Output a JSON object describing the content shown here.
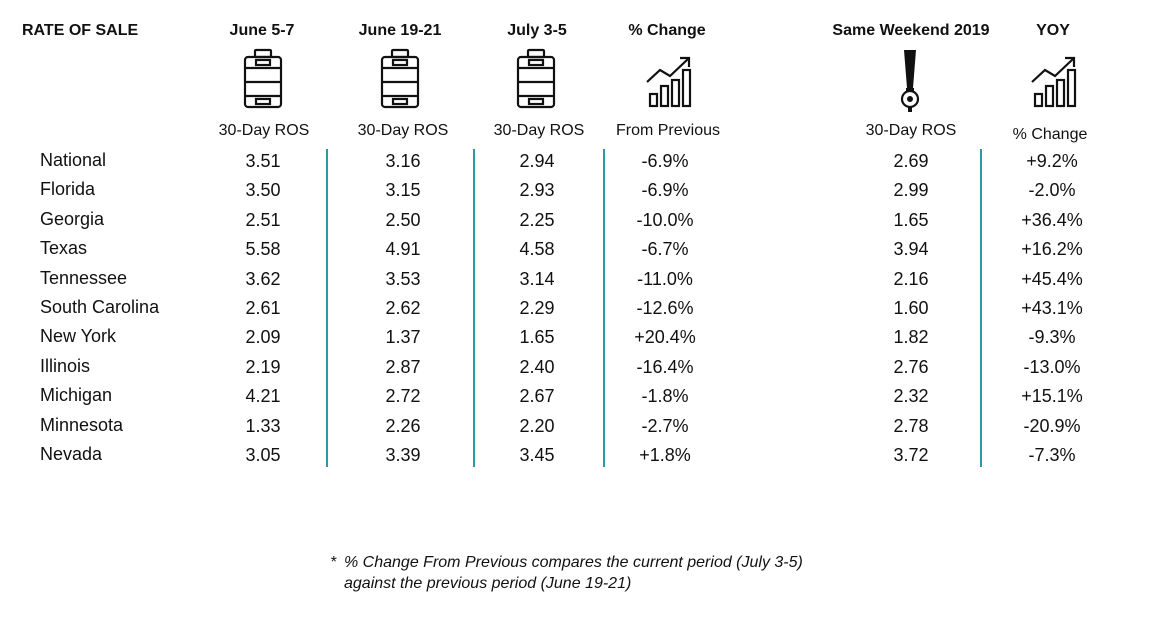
{
  "title": "RATE OF SALE",
  "columns": [
    {
      "key": "june5_7",
      "header": "June 5-7",
      "sub": "30-Day ROS",
      "icon": "keg-icon"
    },
    {
      "key": "june19_21",
      "header": "June 19-21",
      "sub": "30-Day ROS",
      "icon": "keg-icon"
    },
    {
      "key": "july3_5",
      "header": "July 3-5",
      "sub": "30-Day ROS",
      "icon": "keg-icon"
    },
    {
      "key": "pct_change",
      "header": "% Change",
      "sub": "From Previous",
      "icon": "growth-chart-icon"
    },
    {
      "key": "same_weekend_2019",
      "header": "Same Weekend 2019",
      "sub": "30-Day ROS",
      "icon": "beer-tap-icon"
    },
    {
      "key": "yoy",
      "header": "YOY",
      "sub": "% Change",
      "icon": "growth-chart-icon"
    }
  ],
  "rows": [
    {
      "label": "National",
      "values": [
        "3.51",
        "3.16",
        "2.94",
        "-6.9%",
        "2.69",
        "+9.2%"
      ]
    },
    {
      "label": "Florida",
      "values": [
        "3.50",
        "3.15",
        "2.93",
        "-6.9%",
        "2.99",
        "-2.0%"
      ]
    },
    {
      "label": "Georgia",
      "values": [
        "2.51",
        "2.50",
        "2.25",
        "-10.0%",
        "1.65",
        "+36.4%"
      ]
    },
    {
      "label": "Texas",
      "values": [
        "5.58",
        "4.91",
        "4.58",
        "-6.7%",
        "3.94",
        "+16.2%"
      ]
    },
    {
      "label": "Tennessee",
      "values": [
        "3.62",
        "3.53",
        "3.14",
        "-11.0%",
        "2.16",
        "+45.4%"
      ]
    },
    {
      "label": "South Carolina",
      "values": [
        "2.61",
        "2.62",
        "2.29",
        "-12.6%",
        "1.60",
        "+43.1%"
      ]
    },
    {
      "label": "New York",
      "values": [
        "2.09",
        "1.37",
        "1.65",
        "+20.4%",
        "1.82",
        "-9.3%"
      ]
    },
    {
      "label": "Illinois",
      "values": [
        "2.19",
        "2.87",
        "2.40",
        "-16.4%",
        "2.76",
        "-13.0%"
      ]
    },
    {
      "label": "Michigan",
      "values": [
        "4.21",
        "2.72",
        "2.67",
        "-1.8%",
        "2.32",
        "+15.1%"
      ]
    },
    {
      "label": "Minnesota",
      "values": [
        "1.33",
        "2.26",
        "2.20",
        "-2.7%",
        "2.78",
        "-20.9%"
      ]
    },
    {
      "label": "Nevada",
      "values": [
        "3.05",
        "3.39",
        "3.45",
        "+1.8%",
        "3.72",
        "-7.3%"
      ]
    }
  ],
  "footnote": {
    "marker": "*",
    "line1": "% Change From Previous compares the current period (July 3-5)",
    "line2": "against the previous period (June 19-21)"
  },
  "colors": {
    "divider": "#2a9aa6",
    "text": "#111111"
  }
}
